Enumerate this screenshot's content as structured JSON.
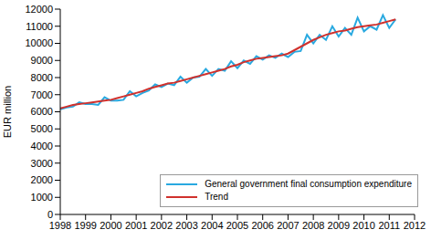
{
  "chart_data": {
    "type": "line",
    "y_label": "EUR million",
    "x": [
      1998,
      1998.25,
      1998.5,
      1998.75,
      1999,
      1999.25,
      1999.5,
      1999.75,
      2000,
      2000.25,
      2000.5,
      2000.75,
      2001,
      2001.25,
      2001.5,
      2001.75,
      2002,
      2002.25,
      2002.5,
      2002.75,
      2003,
      2003.25,
      2003.5,
      2003.75,
      2004,
      2004.25,
      2004.5,
      2004.75,
      2005,
      2005.25,
      2005.5,
      2005.75,
      2006,
      2006.25,
      2006.5,
      2006.75,
      2007,
      2007.25,
      2007.5,
      2007.75,
      2008,
      2008.25,
      2008.5,
      2008.75,
      2009,
      2009.25,
      2009.5,
      2009.75,
      2010,
      2010.25,
      2010.5,
      2010.75,
      2011,
      2011.25
    ],
    "series": [
      {
        "name": "General government final consumption expenditure",
        "color": "#29a9e0",
        "values": [
          6150,
          6250,
          6300,
          6550,
          6450,
          6450,
          6400,
          6850,
          6650,
          6650,
          6700,
          7200,
          6900,
          7100,
          7250,
          7600,
          7450,
          7650,
          7550,
          8050,
          7700,
          8000,
          8050,
          8500,
          8100,
          8500,
          8400,
          8950,
          8550,
          9000,
          8800,
          9250,
          9050,
          9300,
          9150,
          9400,
          9200,
          9500,
          9550,
          10500,
          10000,
          10500,
          10200,
          11000,
          10400,
          10900,
          10500,
          11500,
          10700,
          11000,
          10800,
          11650,
          10900,
          11400
        ]
      },
      {
        "name": "Trend",
        "color": "#d0312d",
        "values": [
          6200,
          6300,
          6400,
          6450,
          6500,
          6550,
          6600,
          6650,
          6700,
          6800,
          6900,
          7000,
          7100,
          7200,
          7350,
          7450,
          7550,
          7650,
          7700,
          7800,
          7900,
          8000,
          8100,
          8200,
          8300,
          8400,
          8500,
          8650,
          8750,
          8900,
          9000,
          9100,
          9150,
          9200,
          9250,
          9300,
          9400,
          9600,
          9800,
          10000,
          10200,
          10350,
          10500,
          10600,
          10700,
          10750,
          10850,
          10950,
          11000,
          11050,
          11100,
          11200,
          11300,
          11400
        ]
      }
    ],
    "xlim": [
      1998,
      2012
    ],
    "xticks": [
      1998,
      1999,
      2000,
      2001,
      2002,
      2003,
      2004,
      2005,
      2006,
      2007,
      2008,
      2009,
      2010,
      2011,
      2012
    ],
    "ylim": [
      0,
      12000
    ],
    "yticks": [
      0,
      1000,
      2000,
      3000,
      4000,
      5000,
      6000,
      7000,
      8000,
      9000,
      10000,
      11000,
      12000
    ],
    "grid": false,
    "legend": "lower right"
  }
}
